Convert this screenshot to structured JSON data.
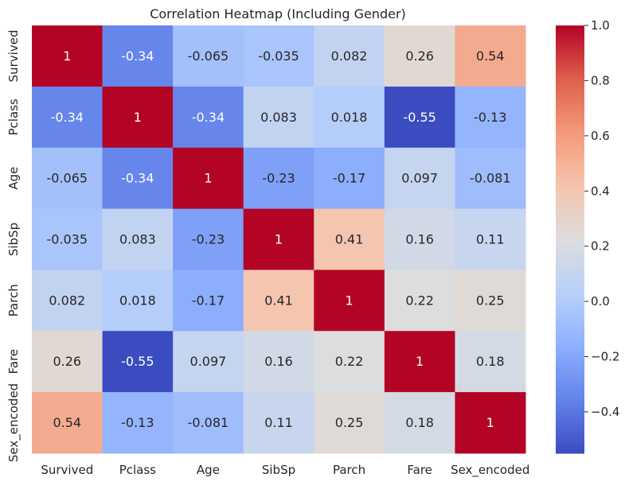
{
  "chart_data": {
    "type": "heatmap",
    "title": "Correlation Heatmap (Including Gender)",
    "xlabel": "",
    "ylabel": "",
    "x_categories": [
      "Survived",
      "Pclass",
      "Age",
      "SibSp",
      "Parch",
      "Fare",
      "Sex_encoded"
    ],
    "y_categories": [
      "Survived",
      "Pclass",
      "Age",
      "SibSp",
      "Parch",
      "Fare",
      "Sex_encoded"
    ],
    "values": [
      [
        1,
        -0.34,
        -0.065,
        -0.035,
        0.082,
        0.26,
        0.54
      ],
      [
        -0.34,
        1,
        -0.34,
        0.083,
        0.018,
        -0.55,
        -0.13
      ],
      [
        -0.065,
        -0.34,
        1,
        -0.23,
        -0.17,
        0.097,
        -0.081
      ],
      [
        -0.035,
        0.083,
        -0.23,
        1,
        0.41,
        0.16,
        0.11
      ],
      [
        0.082,
        0.018,
        -0.17,
        0.41,
        1,
        0.22,
        0.25
      ],
      [
        0.26,
        -0.55,
        0.097,
        0.16,
        0.22,
        1,
        0.18
      ],
      [
        0.54,
        -0.13,
        -0.081,
        0.11,
        0.25,
        0.18,
        1
      ]
    ],
    "annotations": [
      [
        "1",
        "-0.34",
        "-0.065",
        "-0.035",
        "0.082",
        "0.26",
        "0.54"
      ],
      [
        "-0.34",
        "1",
        "-0.34",
        "0.083",
        "0.018",
        "-0.55",
        "-0.13"
      ],
      [
        "-0.065",
        "-0.34",
        "1",
        "-0.23",
        "-0.17",
        "0.097",
        "-0.081"
      ],
      [
        "-0.035",
        "0.083",
        "-0.23",
        "1",
        "0.41",
        "0.16",
        "0.11"
      ],
      [
        "0.082",
        "0.018",
        "-0.17",
        "0.41",
        "1",
        "0.22",
        "0.25"
      ],
      [
        "0.26",
        "-0.55",
        "0.097",
        "0.16",
        "0.22",
        "1",
        "0.18"
      ],
      [
        "0.54",
        "-0.13",
        "-0.081",
        "0.11",
        "0.25",
        "0.18",
        "1"
      ]
    ],
    "colormap": "coolwarm",
    "vmin": -0.55,
    "vmax": 1.0,
    "colorbar_ticks": [
      1.0,
      0.8,
      0.6,
      0.4,
      0.2,
      0.0,
      -0.2,
      -0.4
    ],
    "colorbar_tick_labels": [
      "1.0",
      "0.8",
      "0.6",
      "0.4",
      "0.2",
      "0.0",
      "−0.2",
      "−0.4"
    ],
    "grid": false,
    "legend": "colorbar-right"
  }
}
